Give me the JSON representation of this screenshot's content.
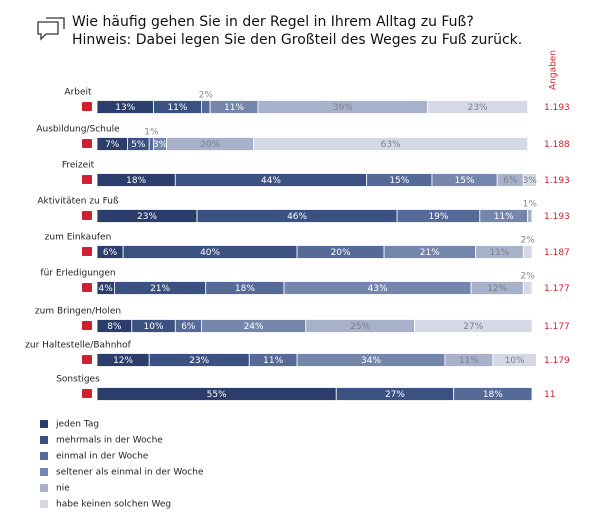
{
  "chart_data": {
    "type": "stacked_bar",
    "title": "Wie häufig gehen Sie in der Regel in Ihrem Alltag zu Fuß?",
    "subtitle": "Hinweis: Dabei legen Sie den Großteil des Weges zu Fuß zurück.",
    "n_title": "Angaben",
    "categories": [
      "Arbeit",
      "Ausbildung/Schule",
      "Freizeit",
      "Aktivitäten zu Fuß",
      "zum Einkaufen",
      "für Erledigungen",
      "zum Bringen/Holen",
      "zur Haltestelle/Bahnhof",
      "Sonstiges"
    ],
    "n": [
      1193,
      1188,
      1193,
      1193,
      1187,
      1177,
      1177,
      1179,
      11
    ],
    "n_labels": [
      "1.193",
      "1.188",
      "1.193",
      "1.193",
      "1.187",
      "1.177",
      "1.177",
      "1.179",
      "11"
    ],
    "series": [
      {
        "name": "jeden Tag",
        "color": "#2a3d6b",
        "values": [
          13,
          7,
          18,
          23,
          6,
          4,
          8,
          12,
          55
        ],
        "value_labels": [
          "13%",
          "7%",
          "18%",
          "23%",
          "6%",
          "4%",
          "8%",
          "12%",
          "55%"
        ]
      },
      {
        "name": "mehrmals in der Woche",
        "color": "#3a5181",
        "values": [
          11,
          5,
          44,
          46,
          40,
          21,
          10,
          23,
          27
        ],
        "value_labels": [
          "11%",
          "5%",
          "44%",
          "46%",
          "40%",
          "21%",
          "10%",
          "23%",
          "27%"
        ]
      },
      {
        "name": "einmal in der Woche",
        "color": "#566a98",
        "values": [
          2,
          1,
          15,
          19,
          20,
          18,
          6,
          11,
          18
        ],
        "value_labels": [
          "2%",
          "1%",
          "15%",
          "19%",
          "20%",
          "18%",
          "6%",
          "11%",
          "18%"
        ]
      },
      {
        "name": "seltener als einmal in der Woche",
        "color": "#7586ad",
        "values": [
          11,
          3,
          15,
          11,
          21,
          43,
          24,
          34,
          null
        ],
        "value_labels": [
          "11%",
          "3%",
          "15%",
          "11%",
          "21%",
          "43%",
          "24%",
          "34%",
          null
        ]
      },
      {
        "name": "nie",
        "color": "#a7b1ca",
        "values": [
          39,
          20,
          6,
          1,
          11,
          12,
          25,
          11,
          null
        ],
        "value_labels": [
          "39%",
          "20%",
          "6%",
          "1%",
          "11%",
          "12%",
          "25%",
          "11%",
          null
        ]
      },
      {
        "name": "habe keinen solchen Weg",
        "color": "#d4d9e5",
        "values": [
          23,
          63,
          3,
          null,
          2,
          2,
          27,
          10,
          null
        ],
        "value_labels": [
          "23%",
          "63%",
          "3%",
          null,
          "2%",
          "2%",
          "27%",
          "10%",
          null
        ]
      }
    ]
  }
}
